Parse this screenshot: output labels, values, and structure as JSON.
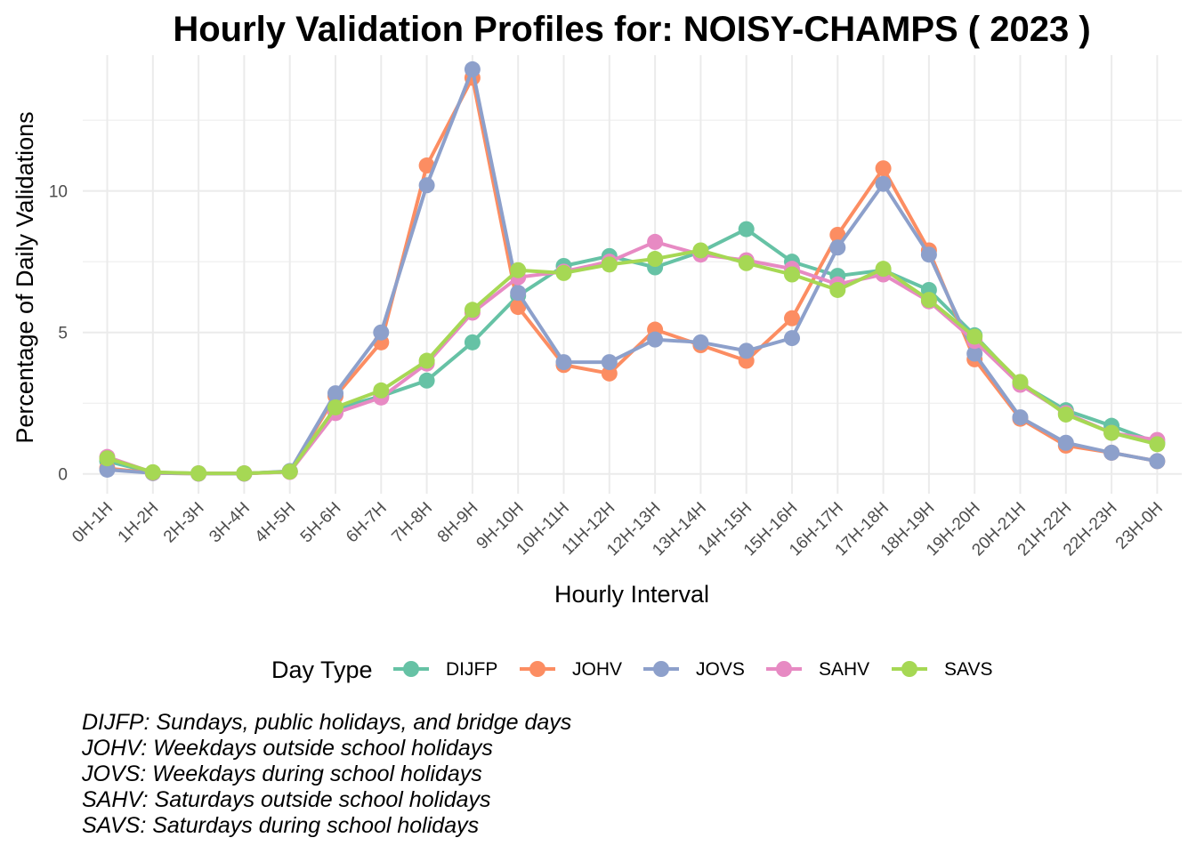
{
  "chart_data": {
    "type": "line",
    "title": "Hourly Validation Profiles for: NOISY-CHAMPS ( 2023 )",
    "xlabel": "Hourly Interval",
    "ylabel": "Percentage of Daily Validations",
    "categories": [
      "0H-1H",
      "1H-2H",
      "2H-3H",
      "3H-4H",
      "4H-5H",
      "5H-6H",
      "6H-7H",
      "7H-8H",
      "8H-9H",
      "9H-10H",
      "10H-11H",
      "11H-12H",
      "12H-13H",
      "13H-14H",
      "14H-15H",
      "15H-16H",
      "16H-17H",
      "17H-18H",
      "18H-19H",
      "19H-20H",
      "20H-21H",
      "21H-22H",
      "22H-23H",
      "23H-0H"
    ],
    "yticks": [
      0,
      5,
      10
    ],
    "ylim": [
      -0.7,
      14.8
    ],
    "grid": true,
    "legend": {
      "title": "Day Type",
      "position": "bottom"
    },
    "series": [
      {
        "name": "DIJFP",
        "color": "#66c2a5",
        "values": [
          0.45,
          0.05,
          0.02,
          0.02,
          0.08,
          2.3,
          2.75,
          3.3,
          4.65,
          6.3,
          7.35,
          7.7,
          7.3,
          7.85,
          8.65,
          7.5,
          7.0,
          7.2,
          6.5,
          4.9,
          3.2,
          2.25,
          1.7,
          1.1
        ]
      },
      {
        "name": "JOHV",
        "color": "#fc8d62",
        "values": [
          0.2,
          0.03,
          0.01,
          0.01,
          0.08,
          2.75,
          4.65,
          10.9,
          14.0,
          5.9,
          3.85,
          3.55,
          5.1,
          4.55,
          4.0,
          5.5,
          8.45,
          10.8,
          7.9,
          4.05,
          1.95,
          1.0,
          0.75,
          0.45
        ]
      },
      {
        "name": "JOVS",
        "color": "#8da0cb",
        "values": [
          0.15,
          0.03,
          0.01,
          0.01,
          0.1,
          2.85,
          5.0,
          10.2,
          14.3,
          6.4,
          3.95,
          3.95,
          4.75,
          4.65,
          4.35,
          4.8,
          8.0,
          10.25,
          7.75,
          4.25,
          2.0,
          1.1,
          0.75,
          0.45
        ]
      },
      {
        "name": "SAHV",
        "color": "#e78ac3",
        "values": [
          0.6,
          0.05,
          0.02,
          0.02,
          0.07,
          2.15,
          2.7,
          3.9,
          5.7,
          6.95,
          7.15,
          7.5,
          8.2,
          7.75,
          7.55,
          7.25,
          6.7,
          7.05,
          6.1,
          4.7,
          3.15,
          2.15,
          1.45,
          1.2
        ]
      },
      {
        "name": "SAVS",
        "color": "#a6d854",
        "values": [
          0.55,
          0.06,
          0.02,
          0.02,
          0.08,
          2.35,
          2.95,
          4.0,
          5.8,
          7.2,
          7.1,
          7.4,
          7.6,
          7.9,
          7.45,
          7.05,
          6.5,
          7.25,
          6.15,
          4.85,
          3.25,
          2.1,
          1.45,
          1.05
        ]
      }
    ],
    "captions": [
      "DIJFP: Sundays, public holidays, and bridge days",
      "JOHV: Weekdays outside school holidays",
      "JOVS: Weekdays during school holidays",
      "SAHV: Saturdays outside school holidays",
      "SAVS: Saturdays during school holidays"
    ]
  }
}
